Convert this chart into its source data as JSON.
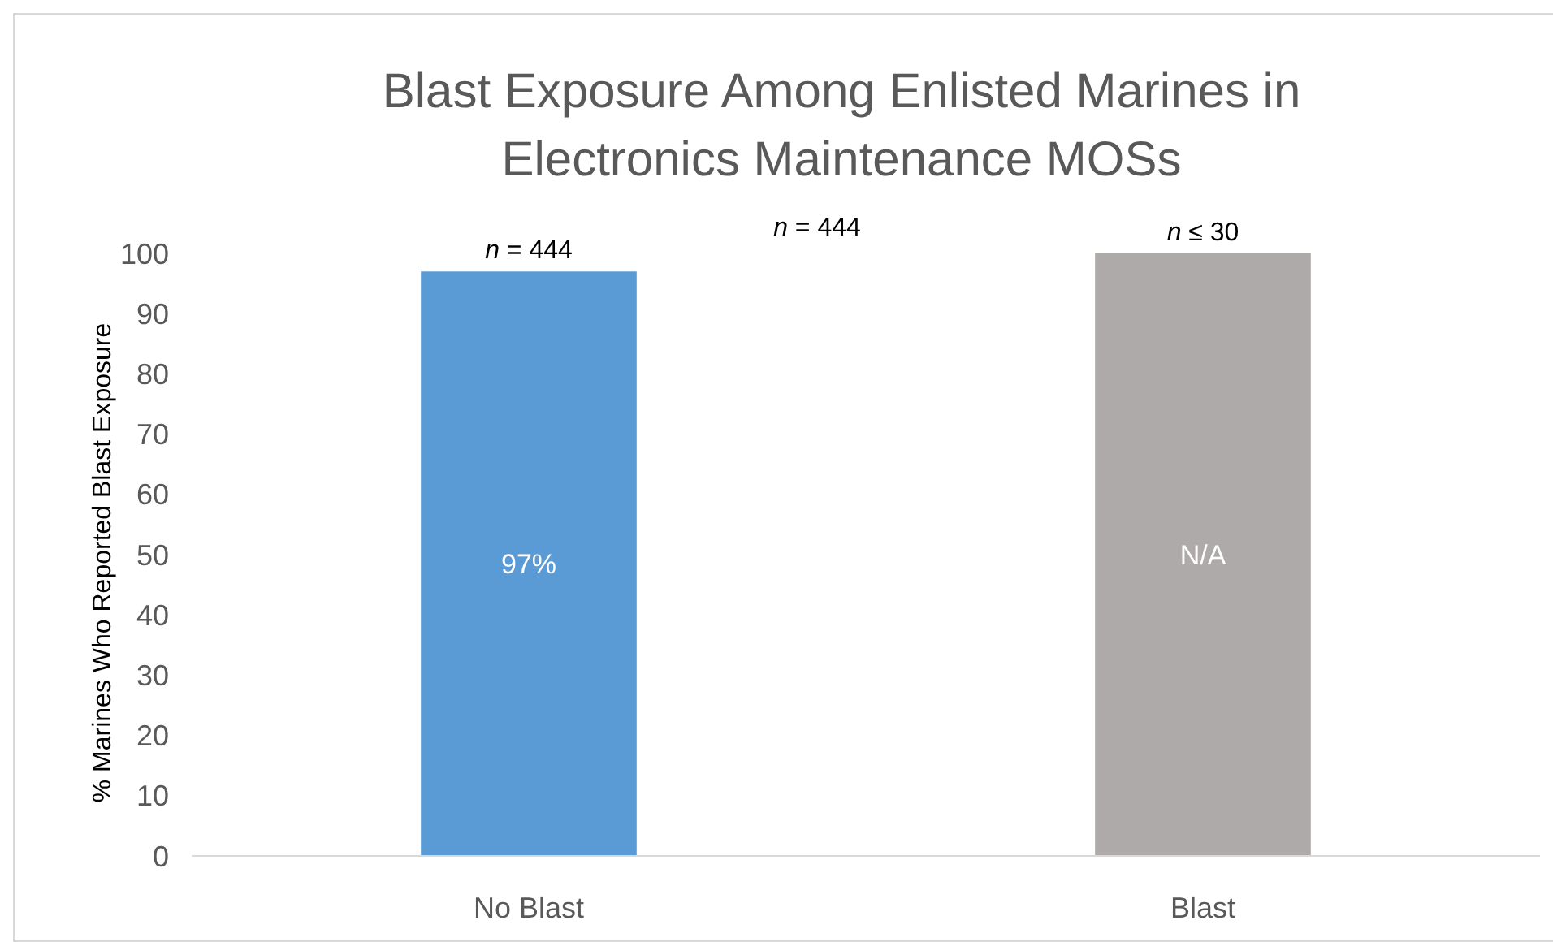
{
  "chart_data": {
    "type": "bar",
    "title": "Blast Exposure Among Enlisted Marines in Electronics Maintenance MOSs",
    "ylabel": "% Marines Who Reported Blast Exposure",
    "categories": [
      "No Blast",
      "Blast"
    ],
    "values": [
      97,
      100
    ],
    "colors": [
      "#5b9bd5",
      "#aeaaaa"
    ],
    "value_labels": [
      "97%",
      "N/A"
    ],
    "ylim": [
      0,
      100
    ],
    "yticks": [
      0,
      10,
      20,
      30,
      40,
      50,
      60,
      70,
      80,
      90,
      100
    ],
    "grid": false,
    "annotations": [
      {
        "text": "n = 444",
        "x": "No Blast",
        "y": 97
      },
      "n = 444",
      {
        "text": "n ≤ 30",
        "x": "Blast",
        "y": 100
      }
    ]
  }
}
